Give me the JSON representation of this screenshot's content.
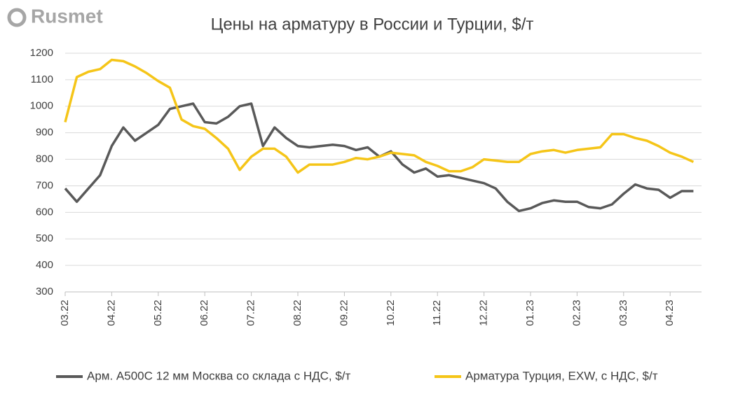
{
  "logo": "Rusmet",
  "chart_data": {
    "type": "line",
    "title": "Цены на арматуру в России и Турции, $/т",
    "categories": [
      "03.22",
      null,
      null,
      null,
      "04.22",
      null,
      null,
      null,
      "05.22",
      null,
      null,
      null,
      "06.22",
      null,
      null,
      null,
      "07.22",
      null,
      null,
      null,
      "08.22",
      null,
      null,
      null,
      "09.22",
      null,
      null,
      null,
      "10.22",
      null,
      null,
      null,
      "11.22",
      null,
      null,
      null,
      "12.22",
      null,
      null,
      null,
      "01.23",
      null,
      null,
      null,
      "02.23",
      null,
      null,
      null,
      "03.23",
      null,
      null,
      null,
      "04.23",
      null,
      null
    ],
    "series": [
      {
        "name": "Арм. А500С 12 мм Москва со склада с НДС, $/т",
        "color": "#595959",
        "values": [
          690,
          640,
          690,
          740,
          850,
          920,
          870,
          900,
          930,
          990,
          1000,
          1010,
          940,
          935,
          960,
          1000,
          1010,
          850,
          920,
          880,
          850,
          845,
          850,
          855,
          850,
          835,
          845,
          810,
          830,
          780,
          750,
          765,
          735,
          740,
          730,
          720,
          710,
          690,
          640,
          605,
          615,
          635,
          645,
          640,
          640,
          620,
          615,
          630,
          670,
          705,
          690,
          685,
          655,
          680,
          680
        ]
      },
      {
        "name": "Арматура Турция, EXW, с НДС, $/т",
        "color": "#f5c518",
        "values": [
          940,
          1110,
          1130,
          1140,
          1175,
          1170,
          1150,
          1125,
          1095,
          1070,
          950,
          925,
          915,
          880,
          840,
          760,
          810,
          840,
          840,
          810,
          750,
          780,
          780,
          780,
          790,
          805,
          800,
          810,
          825,
          820,
          815,
          790,
          775,
          755,
          755,
          770,
          800,
          795,
          790,
          790,
          820,
          830,
          835,
          825,
          835,
          840,
          845,
          895,
          895,
          880,
          870,
          850,
          825,
          810,
          790
        ]
      }
    ],
    "ylim": [
      300,
      1200
    ],
    "yticks": [
      300,
      400,
      500,
      600,
      700,
      800,
      900,
      1000,
      1100,
      1200
    ],
    "grid": true,
    "legend": "bottom"
  }
}
